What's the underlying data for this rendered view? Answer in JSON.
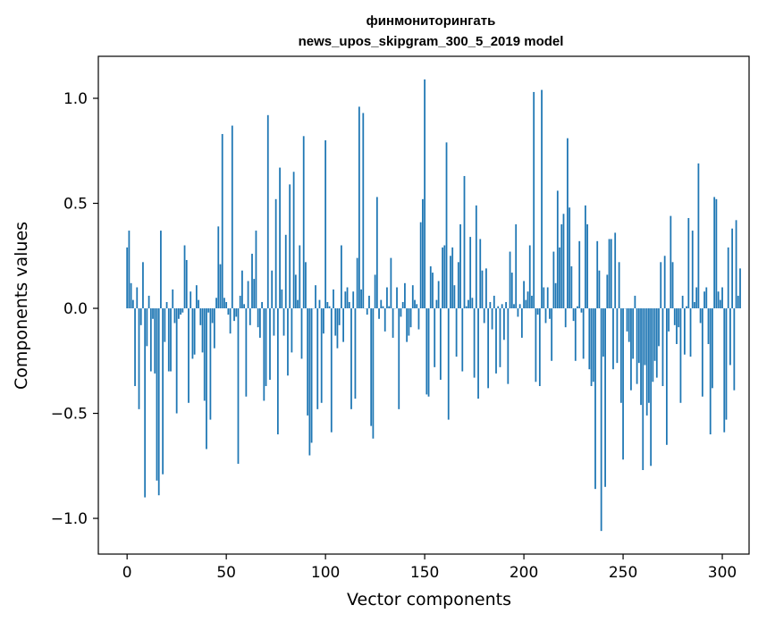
{
  "chart_data": {
    "type": "bar",
    "title": "финмониторингать",
    "subtitle": "news_upos_skipgram_300_5_2019 model",
    "xlabel": "Vector components",
    "ylabel": "Components values",
    "xlim": [
      -14.5,
      313.5
    ],
    "ylim": [
      -1.17,
      1.2
    ],
    "xticks": [
      0,
      50,
      100,
      150,
      200,
      250,
      300
    ],
    "yticks": [
      -1.0,
      -0.5,
      0.0,
      0.5,
      1.0
    ],
    "ytick_labels": [
      "−1.0",
      "−0.5",
      "0.0",
      "0.5",
      "1.0"
    ],
    "bar_color": "#1f77b4",
    "grid": false,
    "values": [
      0.29,
      0.37,
      0.12,
      0.04,
      -0.37,
      0.1,
      -0.48,
      -0.08,
      0.22,
      -0.9,
      -0.18,
      0.06,
      -0.3,
      -0.05,
      -0.31,
      -0.82,
      -0.89,
      0.37,
      -0.79,
      -0.16,
      0.03,
      -0.3,
      -0.3,
      0.09,
      -0.07,
      -0.5,
      -0.05,
      -0.03,
      -0.02,
      0.3,
      0.23,
      -0.45,
      0.08,
      -0.24,
      -0.22,
      0.11,
      0.04,
      -0.08,
      -0.21,
      -0.44,
      -0.67,
      -0.02,
      -0.53,
      -0.07,
      -0.19,
      0.05,
      0.39,
      0.21,
      0.83,
      0.05,
      0.03,
      -0.03,
      -0.12,
      0.87,
      -0.06,
      -0.04,
      -0.74,
      0.06,
      0.18,
      0.02,
      -0.42,
      0.13,
      -0.08,
      0.26,
      0.14,
      0.37,
      -0.09,
      -0.14,
      0.03,
      -0.44,
      -0.37,
      0.92,
      -0.34,
      0.18,
      -0.13,
      0.52,
      -0.6,
      0.67,
      0.09,
      -0.13,
      0.35,
      -0.32,
      0.59,
      -0.21,
      0.65,
      0.16,
      0.04,
      0.3,
      -0.24,
      0.82,
      0.22,
      -0.51,
      -0.7,
      -0.64,
      0.0,
      0.11,
      -0.48,
      0.04,
      -0.45,
      -0.12,
      0.8,
      0.03,
      0.01,
      -0.59,
      0.09,
      -0.13,
      -0.19,
      -0.08,
      0.3,
      -0.16,
      0.08,
      0.1,
      0.03,
      -0.48,
      0.08,
      -0.43,
      0.24,
      0.96,
      0.09,
      0.93,
      0.0,
      -0.03,
      0.06,
      -0.56,
      -0.62,
      0.16,
      0.53,
      -0.05,
      0.04,
      0.01,
      -0.11,
      0.1,
      0.01,
      0.24,
      -0.14,
      0.0,
      0.1,
      -0.48,
      -0.04,
      0.03,
      0.12,
      -0.16,
      -0.13,
      -0.09,
      0.11,
      0.04,
      0.02,
      -0.1,
      0.41,
      0.52,
      1.09,
      -0.41,
      -0.42,
      0.2,
      0.17,
      -0.28,
      0.04,
      0.13,
      -0.34,
      0.29,
      0.3,
      0.79,
      -0.53,
      0.25,
      0.29,
      0.11,
      -0.23,
      0.22,
      0.4,
      -0.3,
      0.63,
      0.01,
      0.04,
      0.34,
      0.05,
      -0.33,
      0.49,
      -0.43,
      0.33,
      0.18,
      -0.07,
      0.19,
      -0.38,
      0.03,
      -0.1,
      0.06,
      -0.31,
      0.01,
      -0.28,
      0.02,
      -0.15,
      0.03,
      -0.36,
      0.27,
      0.17,
      0.02,
      0.4,
      -0.04,
      0.02,
      -0.14,
      0.13,
      0.04,
      0.08,
      0.3,
      0.06,
      1.03,
      -0.35,
      -0.03,
      -0.37,
      1.04,
      0.1,
      -0.07,
      0.1,
      -0.05,
      -0.25,
      0.27,
      0.12,
      0.56,
      0.29,
      0.4,
      0.45,
      -0.09,
      0.81,
      0.48,
      0.2,
      -0.06,
      -0.25,
      0.01,
      0.32,
      -0.02,
      -0.24,
      0.49,
      0.4,
      -0.29,
      -0.37,
      -0.35,
      -0.86,
      0.32,
      0.18,
      -1.06,
      -0.23,
      -0.85,
      0.16,
      0.33,
      0.33,
      -0.29,
      0.36,
      -0.26,
      0.22,
      -0.45,
      -0.72,
      0.0,
      -0.11,
      -0.16,
      -0.39,
      -0.24,
      0.06,
      -0.36,
      -0.26,
      -0.46,
      -0.77,
      -0.27,
      -0.51,
      -0.45,
      -0.75,
      -0.35,
      -0.25,
      -0.33,
      -0.18,
      0.22,
      -0.37,
      0.25,
      -0.65,
      -0.11,
      0.44,
      0.22,
      -0.08,
      -0.17,
      -0.09,
      -0.45,
      0.06,
      -0.22,
      0.01,
      0.43,
      -0.23,
      0.37,
      0.03,
      0.1,
      0.69,
      -0.07,
      -0.42,
      0.08,
      0.1,
      -0.17,
      -0.6,
      -0.38,
      0.53,
      0.52,
      0.08,
      0.04,
      0.1,
      -0.59,
      -0.53,
      0.29,
      -0.27,
      0.38,
      -0.39,
      0.42,
      0.06,
      0.19
    ]
  }
}
